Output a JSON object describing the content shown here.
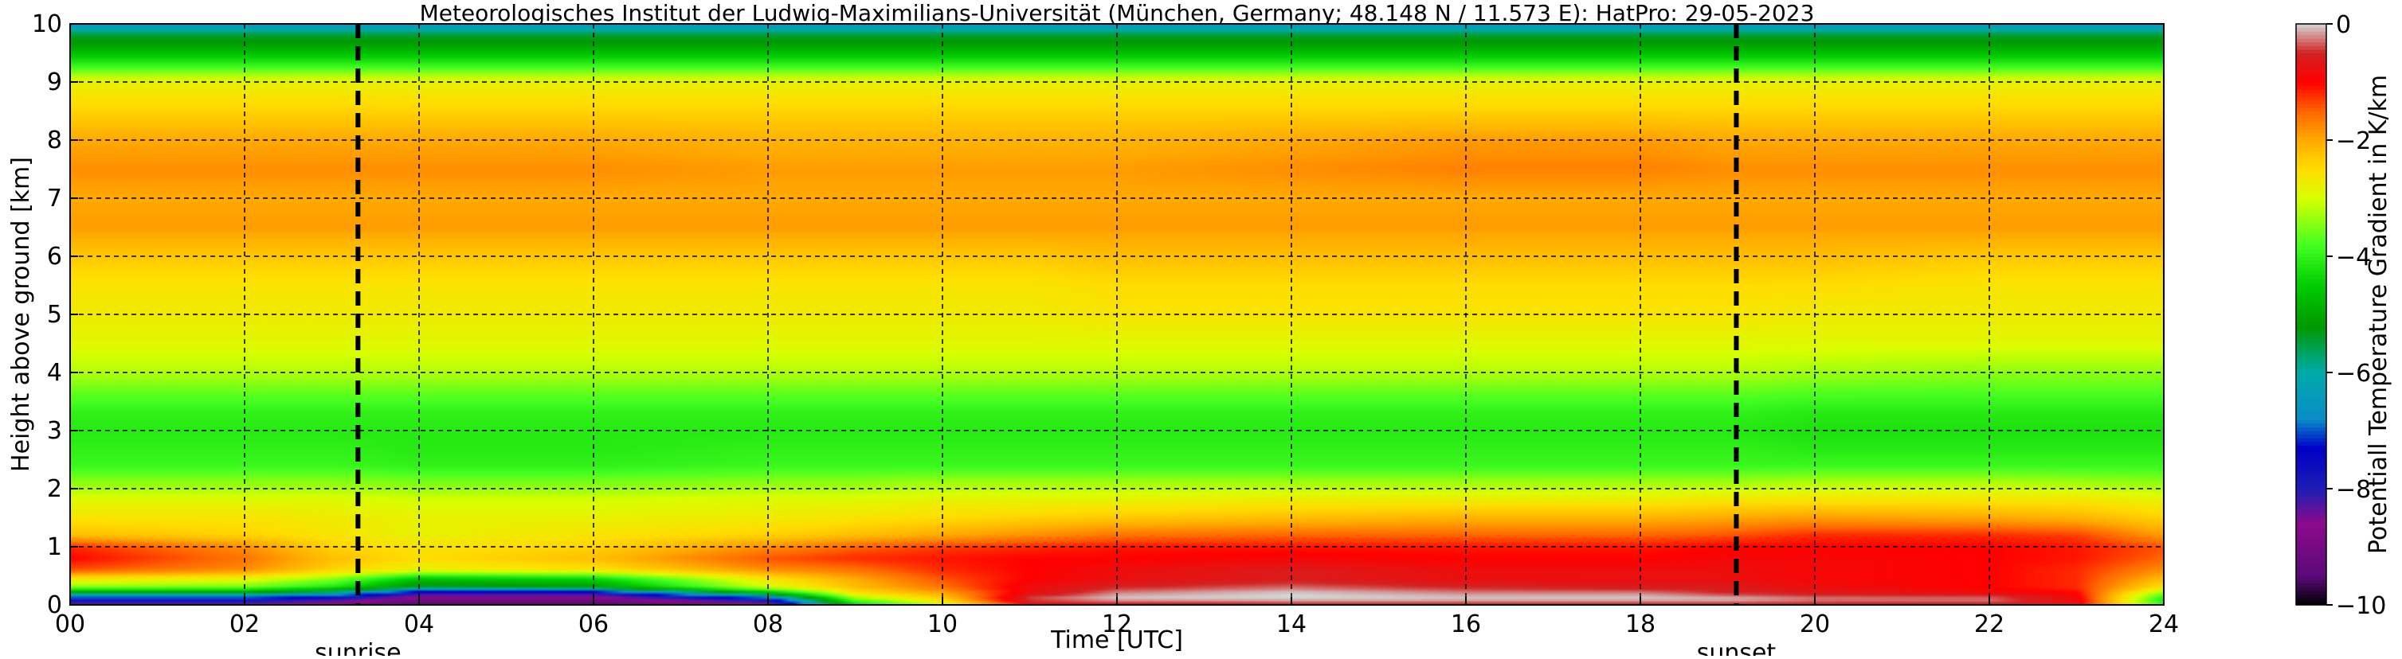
{
  "chart_data": {
    "type": "heatmap",
    "title": "Meteorologisches Institut der Ludwig-Maximilians-Universität (München, Germany; 48.148 N / 11.573 E):    HatPro: 29-05-2023",
    "xlabel": "Time [UTC]",
    "ylabel": "Height above ground [km]",
    "colorbar_label": "Potentiall Temperature Gradient in K/km",
    "xlim": [
      0,
      24
    ],
    "ylim": [
      0,
      10
    ],
    "clim": [
      -10,
      0
    ],
    "grid": true,
    "x_ticks": [
      0,
      2,
      4,
      6,
      8,
      10,
      12,
      14,
      16,
      18,
      20,
      22,
      24
    ],
    "x_tick_labels": [
      "00",
      "02",
      "04",
      "06",
      "08",
      "10",
      "12",
      "14",
      "16",
      "18",
      "20",
      "22",
      "24"
    ],
    "y_ticks": [
      0,
      1,
      2,
      3,
      4,
      5,
      6,
      7,
      8,
      9,
      10
    ],
    "y_tick_labels": [
      "0",
      "1",
      "2",
      "3",
      "4",
      "5",
      "6",
      "7",
      "8",
      "9",
      "10"
    ],
    "colorbar_ticks": [
      0,
      -2,
      -4,
      -6,
      -8,
      -10
    ],
    "colorbar_tick_labels": [
      "0",
      "−2",
      "−4",
      "−6",
      "−8",
      "−10"
    ],
    "markers": [
      {
        "label": "sunrise",
        "x": 3.3
      },
      {
        "label": "sunset",
        "x": 19.1
      }
    ],
    "colormap": [
      {
        "v": -10.0,
        "color": "#000000"
      },
      {
        "v": -9.5,
        "color": "#5a0a78"
      },
      {
        "v": -8.6,
        "color": "#8c0a8c"
      },
      {
        "v": -8.0,
        "color": "#1e1eb4"
      },
      {
        "v": -7.3,
        "color": "#0000c8"
      },
      {
        "v": -6.8,
        "color": "#0a8cc8"
      },
      {
        "v": -6.0,
        "color": "#00aaaa"
      },
      {
        "v": -5.2,
        "color": "#009900"
      },
      {
        "v": -4.5,
        "color": "#00cc00"
      },
      {
        "v": -3.8,
        "color": "#44ff22"
      },
      {
        "v": -3.0,
        "color": "#d8ff00"
      },
      {
        "v": -2.5,
        "color": "#ffdd00"
      },
      {
        "v": -2.0,
        "color": "#ffaa00"
      },
      {
        "v": -1.5,
        "color": "#ff6600"
      },
      {
        "v": -1.0,
        "color": "#ff0000"
      },
      {
        "v": -0.5,
        "color": "#d22222"
      },
      {
        "v": 0.0,
        "color": "#d4d4d4"
      }
    ],
    "field": {
      "height_km": [
        0.0,
        0.1,
        0.2,
        0.3,
        0.45,
        0.6,
        0.8,
        1.0,
        1.2,
        1.5,
        1.8,
        2.1,
        2.4,
        2.7,
        3.0,
        3.3,
        3.6,
        4.0,
        4.5,
        5.0,
        5.5,
        6.0,
        6.5,
        7.0,
        7.5,
        8.0,
        8.5,
        9.0,
        9.3,
        9.6,
        9.8,
        10.0
      ],
      "time_h": [
        0,
        2,
        3,
        4,
        6,
        8,
        9,
        10,
        11,
        12,
        14,
        16,
        18,
        19,
        20,
        22,
        23,
        24
      ],
      "values": [
        [
          -8.5,
          -8.5,
          -9.0,
          -9.6,
          -9.6,
          -8.8,
          -4.5,
          -3.0,
          -1.0,
          -0.8,
          -0.6,
          -0.6,
          -0.6,
          -0.6,
          -0.6,
          -0.6,
          -0.8,
          -4.0
        ],
        [
          -7.5,
          -7.5,
          -8.0,
          -9.0,
          -9.0,
          -7.5,
          -3.5,
          -2.4,
          -0.3,
          0.0,
          0.0,
          0.0,
          0.0,
          0.0,
          -0.2,
          -0.2,
          -0.8,
          -4.2
        ],
        [
          -5.5,
          -5.5,
          -6.2,
          -8.0,
          -8.0,
          -5.0,
          -2.6,
          -2.0,
          -0.8,
          -0.2,
          0.0,
          -0.2,
          -0.2,
          -0.5,
          -0.6,
          -0.8,
          -1.0,
          -3.5
        ],
        [
          -3.5,
          -3.6,
          -4.2,
          -5.5,
          -5.2,
          -3.0,
          -2.2,
          -1.6,
          -0.8,
          -0.5,
          -0.3,
          -0.5,
          -0.6,
          -0.6,
          -0.8,
          -1.0,
          -1.2,
          -2.6
        ],
        [
          -2.6,
          -2.8,
          -3.4,
          -4.6,
          -4.4,
          -2.6,
          -2.0,
          -1.4,
          -1.0,
          -0.8,
          -0.6,
          -0.8,
          -0.8,
          -0.8,
          -0.9,
          -1.0,
          -1.2,
          -2.2
        ],
        [
          -1.4,
          -1.8,
          -2.4,
          -2.8,
          -2.6,
          -1.8,
          -1.6,
          -1.2,
          -1.0,
          -0.8,
          -0.6,
          -0.8,
          -0.8,
          -0.8,
          -0.9,
          -1.0,
          -1.2,
          -1.8
        ],
        [
          -1.0,
          -1.6,
          -2.2,
          -2.5,
          -2.2,
          -1.4,
          -1.2,
          -1.1,
          -1.0,
          -1.0,
          -0.9,
          -1.0,
          -1.0,
          -0.9,
          -0.9,
          -1.0,
          -1.1,
          -1.5
        ],
        [
          -1.2,
          -1.8,
          -2.4,
          -2.6,
          -2.4,
          -1.8,
          -1.5,
          -1.3,
          -1.2,
          -1.1,
          -1.1,
          -1.1,
          -1.1,
          -1.0,
          -1.0,
          -1.0,
          -1.1,
          -1.4
        ],
        [
          -2.2,
          -2.4,
          -2.6,
          -2.8,
          -2.6,
          -2.4,
          -2.2,
          -2.0,
          -1.8,
          -1.6,
          -1.5,
          -1.5,
          -1.5,
          -1.4,
          -1.2,
          -1.2,
          -1.3,
          -1.9
        ],
        [
          -2.6,
          -2.6,
          -2.7,
          -2.8,
          -2.8,
          -2.7,
          -2.6,
          -2.5,
          -2.4,
          -2.3,
          -2.2,
          -2.1,
          -2.1,
          -2.0,
          -1.9,
          -2.0,
          -2.1,
          -2.4
        ],
        [
          -2.9,
          -2.9,
          -2.9,
          -3.0,
          -3.0,
          -2.9,
          -2.9,
          -2.8,
          -2.8,
          -2.8,
          -2.7,
          -2.7,
          -2.7,
          -2.6,
          -2.6,
          -2.6,
          -2.6,
          -2.8
        ],
        [
          -3.4,
          -3.4,
          -3.4,
          -3.5,
          -3.5,
          -3.4,
          -3.4,
          -3.3,
          -3.3,
          -3.3,
          -3.3,
          -3.3,
          -3.3,
          -3.3,
          -3.2,
          -3.2,
          -3.3,
          -3.4
        ],
        [
          -3.9,
          -3.9,
          -3.9,
          -4.0,
          -4.0,
          -3.9,
          -3.9,
          -3.9,
          -3.9,
          -3.9,
          -3.9,
          -3.9,
          -3.9,
          -3.9,
          -3.9,
          -3.9,
          -3.9,
          -3.9
        ],
        [
          -4.0,
          -4.0,
          -4.0,
          -4.1,
          -4.1,
          -4.0,
          -4.0,
          -4.0,
          -4.0,
          -4.0,
          -4.0,
          -4.0,
          -4.0,
          -4.0,
          -4.1,
          -4.1,
          -4.1,
          -4.1
        ],
        [
          -4.1,
          -4.1,
          -4.1,
          -4.1,
          -4.1,
          -4.1,
          -4.1,
          -4.1,
          -4.1,
          -4.1,
          -4.1,
          -4.1,
          -4.1,
          -4.1,
          -4.2,
          -4.2,
          -4.2,
          -4.2
        ],
        [
          -4.0,
          -4.0,
          -4.0,
          -4.0,
          -4.0,
          -4.0,
          -4.0,
          -4.0,
          -4.0,
          -4.0,
          -4.0,
          -4.0,
          -4.0,
          -4.0,
          -4.1,
          -4.1,
          -4.1,
          -4.1
        ],
        [
          -3.7,
          -3.7,
          -3.7,
          -3.7,
          -3.7,
          -3.7,
          -3.7,
          -3.7,
          -3.7,
          -3.7,
          -3.7,
          -3.7,
          -3.7,
          -3.7,
          -3.8,
          -3.8,
          -3.8,
          -3.8
        ],
        [
          -3.2,
          -3.2,
          -3.2,
          -3.2,
          -3.2,
          -3.2,
          -3.2,
          -3.2,
          -3.2,
          -3.2,
          -3.2,
          -3.2,
          -3.2,
          -3.2,
          -3.3,
          -3.4,
          -3.4,
          -3.4
        ],
        [
          -2.9,
          -2.9,
          -2.9,
          -2.9,
          -2.9,
          -2.9,
          -2.9,
          -2.9,
          -2.9,
          -2.9,
          -2.9,
          -2.9,
          -2.9,
          -2.9,
          -2.9,
          -2.9,
          -2.9,
          -2.9
        ],
        [
          -2.7,
          -2.7,
          -2.7,
          -2.7,
          -2.7,
          -2.7,
          -2.7,
          -2.7,
          -2.7,
          -2.6,
          -2.6,
          -2.6,
          -2.6,
          -2.6,
          -2.7,
          -2.7,
          -2.7,
          -2.7
        ],
        [
          -2.6,
          -2.6,
          -2.6,
          -2.6,
          -2.6,
          -2.6,
          -2.6,
          -2.6,
          -2.6,
          -2.5,
          -2.5,
          -2.5,
          -2.5,
          -2.5,
          -2.5,
          -2.6,
          -2.6,
          -2.6
        ],
        [
          -2.3,
          -2.3,
          -2.3,
          -2.3,
          -2.3,
          -2.3,
          -2.3,
          -2.3,
          -2.3,
          -2.2,
          -2.2,
          -2.2,
          -2.2,
          -2.2,
          -2.2,
          -2.3,
          -2.3,
          -2.3
        ],
        [
          -1.9,
          -1.9,
          -1.9,
          -1.9,
          -1.9,
          -1.9,
          -1.9,
          -1.9,
          -1.9,
          -1.9,
          -1.9,
          -1.9,
          -1.9,
          -1.9,
          -1.9,
          -1.9,
          -1.9,
          -1.9
        ],
        [
          -2.0,
          -2.0,
          -2.0,
          -2.0,
          -2.0,
          -2.0,
          -2.0,
          -2.0,
          -2.0,
          -2.0,
          -2.0,
          -2.0,
          -2.0,
          -2.0,
          -2.0,
          -2.0,
          -2.0,
          -2.0
        ],
        [
          -1.8,
          -1.8,
          -1.8,
          -1.8,
          -1.8,
          -1.9,
          -1.9,
          -1.9,
          -1.9,
          -1.9,
          -1.8,
          -1.7,
          -1.7,
          -1.8,
          -1.8,
          -1.8,
          -1.8,
          -1.8
        ],
        [
          -2.0,
          -2.0,
          -2.0,
          -2.0,
          -2.0,
          -2.1,
          -2.1,
          -2.1,
          -2.1,
          -2.1,
          -2.0,
          -1.9,
          -1.9,
          -2.0,
          -2.0,
          -2.0,
          -2.0,
          -2.0
        ],
        [
          -2.4,
          -2.4,
          -2.4,
          -2.4,
          -2.4,
          -2.4,
          -2.4,
          -2.4,
          -2.4,
          -2.4,
          -2.4,
          -2.4,
          -2.4,
          -2.4,
          -2.4,
          -2.4,
          -2.4,
          -2.4
        ],
        [
          -2.8,
          -2.8,
          -2.8,
          -2.8,
          -2.8,
          -2.8,
          -2.8,
          -2.8,
          -2.8,
          -2.8,
          -2.8,
          -2.8,
          -2.8,
          -2.8,
          -2.8,
          -2.8,
          -2.8,
          -2.8
        ],
        [
          -4.0,
          -4.0,
          -4.0,
          -4.0,
          -4.0,
          -4.0,
          -4.0,
          -4.0,
          -4.0,
          -4.0,
          -4.0,
          -4.0,
          -4.0,
          -4.0,
          -4.0,
          -4.0,
          -4.0,
          -4.0
        ],
        [
          -5.0,
          -5.0,
          -5.0,
          -5.0,
          -5.0,
          -5.0,
          -5.0,
          -5.0,
          -5.0,
          -5.0,
          -5.0,
          -5.0,
          -5.0,
          -5.0,
          -5.0,
          -5.0,
          -5.0,
          -5.0
        ],
        [
          -5.4,
          -5.4,
          -5.4,
          -5.4,
          -5.4,
          -5.4,
          -5.4,
          -5.4,
          -5.4,
          -5.4,
          -5.4,
          -5.4,
          -5.4,
          -5.4,
          -5.4,
          -5.4,
          -5.4,
          -5.4
        ],
        [
          -6.6,
          -6.6,
          -6.6,
          -6.6,
          -6.6,
          -6.6,
          -6.6,
          -6.6,
          -6.6,
          -6.6,
          -6.6,
          -6.6,
          -6.6,
          -6.6,
          -6.6,
          -6.6,
          -6.6,
          -6.6
        ]
      ]
    }
  }
}
